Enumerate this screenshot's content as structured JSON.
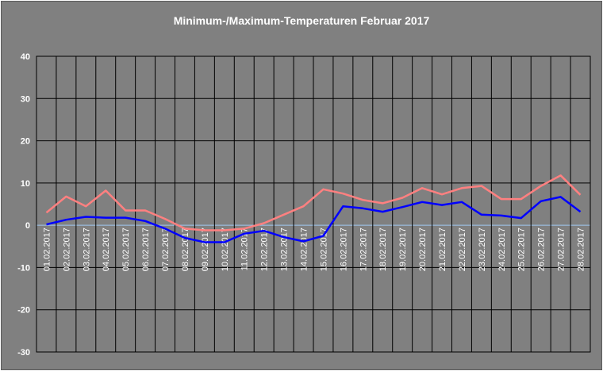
{
  "chart_data": {
    "type": "line",
    "title": "Minimum-/Maximum-Temperaturen Februar 2017",
    "xlabel": "",
    "ylabel": "",
    "ylim": [
      -30,
      40
    ],
    "yticks": [
      -30,
      -20,
      -10,
      0,
      10,
      20,
      30,
      40
    ],
    "grid": true,
    "legend": "none",
    "categories": [
      "01.02.2017",
      "02.02.2017",
      "03.02.2017",
      "04.02.2017",
      "05.02.2017",
      "06.02.2017",
      "07.02.2017",
      "08.02.2017",
      "09.02.2017",
      "10.02.2017",
      "11.02.2017",
      "12.02.2017",
      "13.02.2017",
      "14.02.2017",
      "15.02.2017",
      "16.02.2017",
      "17.02.2017",
      "18.02.2017",
      "19.02.2017",
      "20.02.2017",
      "21.02.2017",
      "22.02.2017",
      "23.02.2017",
      "24.02.2017",
      "25.02.2017",
      "26.02.2017",
      "27.02.2017",
      "28.02.2017"
    ],
    "series": [
      {
        "color": "#ff8080",
        "values": [
          3.0,
          6.8,
          4.5,
          8.2,
          3.5,
          3.5,
          1.5,
          -0.8,
          -1.2,
          -1.2,
          -0.8,
          0.5,
          2.5,
          4.5,
          8.5,
          7.5,
          6.0,
          5.2,
          6.5,
          8.8,
          7.3,
          8.8,
          9.3,
          6.2,
          6.2,
          9.3,
          11.8,
          7.2
        ]
      },
      {
        "color": "#0000ff",
        "values": [
          0.2,
          1.3,
          2.0,
          1.8,
          1.8,
          1.0,
          -0.8,
          -3.0,
          -4.0,
          -4.0,
          -2.0,
          -1.3,
          -2.8,
          -3.8,
          -2.5,
          4.5,
          4.0,
          3.2,
          4.3,
          5.5,
          4.8,
          5.5,
          2.5,
          2.3,
          1.7,
          5.7,
          6.7,
          3.2
        ]
      }
    ]
  },
  "colors": {
    "plot_background": "#808080",
    "grid": "#000000",
    "zero_line": "#a0c8f0",
    "text": "#ffffff"
  }
}
